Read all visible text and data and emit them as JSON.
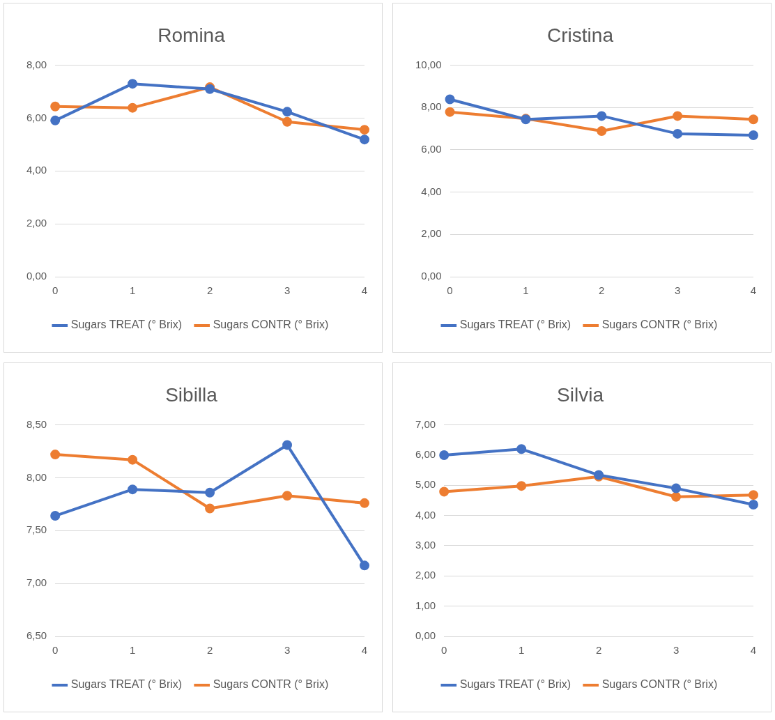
{
  "chart_data": [
    {
      "type": "line",
      "title": "Romina",
      "categories": [
        "0",
        "1",
        "2",
        "3",
        "4"
      ],
      "ylim": [
        0,
        8
      ],
      "yticks": [
        {
          "value": 0,
          "label": "0,00"
        },
        {
          "value": 2,
          "label": "2,00"
        },
        {
          "value": 4,
          "label": "4,00"
        },
        {
          "value": 6,
          "label": "6,00"
        },
        {
          "value": 8,
          "label": "8,00"
        }
      ],
      "grid": "y",
      "legend": "bottom",
      "marker": "circle",
      "series": [
        {
          "name": "Sugars TREAT (° Brix)",
          "color": "#4472c4",
          "values": [
            5.91,
            7.3,
            7.1,
            6.24,
            5.19
          ]
        },
        {
          "name": "Sugars CONTR (° Brix)",
          "color": "#ed7d31",
          "values": [
            6.44,
            6.39,
            7.17,
            5.86,
            5.56
          ]
        }
      ]
    },
    {
      "type": "line",
      "title": "Cristina",
      "categories": [
        "0",
        "1",
        "2",
        "3",
        "4"
      ],
      "ylim": [
        0,
        10
      ],
      "yticks": [
        {
          "value": 0,
          "label": "0,00"
        },
        {
          "value": 2,
          "label": "2,00"
        },
        {
          "value": 4,
          "label": "4,00"
        },
        {
          "value": 6,
          "label": "6,00"
        },
        {
          "value": 8,
          "label": "8,00"
        },
        {
          "value": 10,
          "label": "10,00"
        }
      ],
      "grid": "y",
      "legend": "bottom",
      "marker": "circle",
      "series": [
        {
          "name": "Sugars TREAT (° Brix)",
          "color": "#4472c4",
          "values": [
            8.39,
            7.44,
            7.6,
            6.76,
            6.69
          ]
        },
        {
          "name": "Sugars CONTR (° Brix)",
          "color": "#ed7d31",
          "values": [
            7.79,
            7.47,
            6.89,
            7.6,
            7.44
          ]
        }
      ]
    },
    {
      "type": "line",
      "title": "Sibilla",
      "categories": [
        "0",
        "1",
        "2",
        "3",
        "4"
      ],
      "ylim": [
        6.5,
        8.5
      ],
      "yticks": [
        {
          "value": 6.5,
          "label": "6,50"
        },
        {
          "value": 7,
          "label": "7,00"
        },
        {
          "value": 7.5,
          "label": "7,50"
        },
        {
          "value": 8,
          "label": "8,00"
        },
        {
          "value": 8.5,
          "label": "8,50"
        }
      ],
      "grid": "y",
      "legend": "bottom",
      "marker": "circle",
      "series": [
        {
          "name": "Sugars TREAT (° Brix)",
          "color": "#4472c4",
          "values": [
            7.64,
            7.89,
            7.86,
            8.31,
            7.17
          ]
        },
        {
          "name": "Sugars CONTR (° Brix)",
          "color": "#ed7d31",
          "values": [
            8.22,
            8.17,
            7.71,
            7.83,
            7.76
          ]
        }
      ]
    },
    {
      "type": "line",
      "title": "Silvia",
      "categories": [
        "0",
        "1",
        "2",
        "3",
        "4"
      ],
      "ylim": [
        0,
        7
      ],
      "yticks": [
        {
          "value": 0,
          "label": "0,00"
        },
        {
          "value": 1,
          "label": "1,00"
        },
        {
          "value": 2,
          "label": "2,00"
        },
        {
          "value": 3,
          "label": "3,00"
        },
        {
          "value": 4,
          "label": "4,00"
        },
        {
          "value": 5,
          "label": "5,00"
        },
        {
          "value": 6,
          "label": "6,00"
        },
        {
          "value": 7,
          "label": "7,00"
        }
      ],
      "grid": "y",
      "legend": "bottom",
      "marker": "circle",
      "series": [
        {
          "name": "Sugars TREAT (° Brix)",
          "color": "#4472c4",
          "values": [
            6.0,
            6.2,
            5.34,
            4.9,
            4.36
          ]
        },
        {
          "name": "Sugars CONTR (° Brix)",
          "color": "#ed7d31",
          "values": [
            4.79,
            4.98,
            5.29,
            4.62,
            4.68
          ]
        }
      ]
    }
  ]
}
